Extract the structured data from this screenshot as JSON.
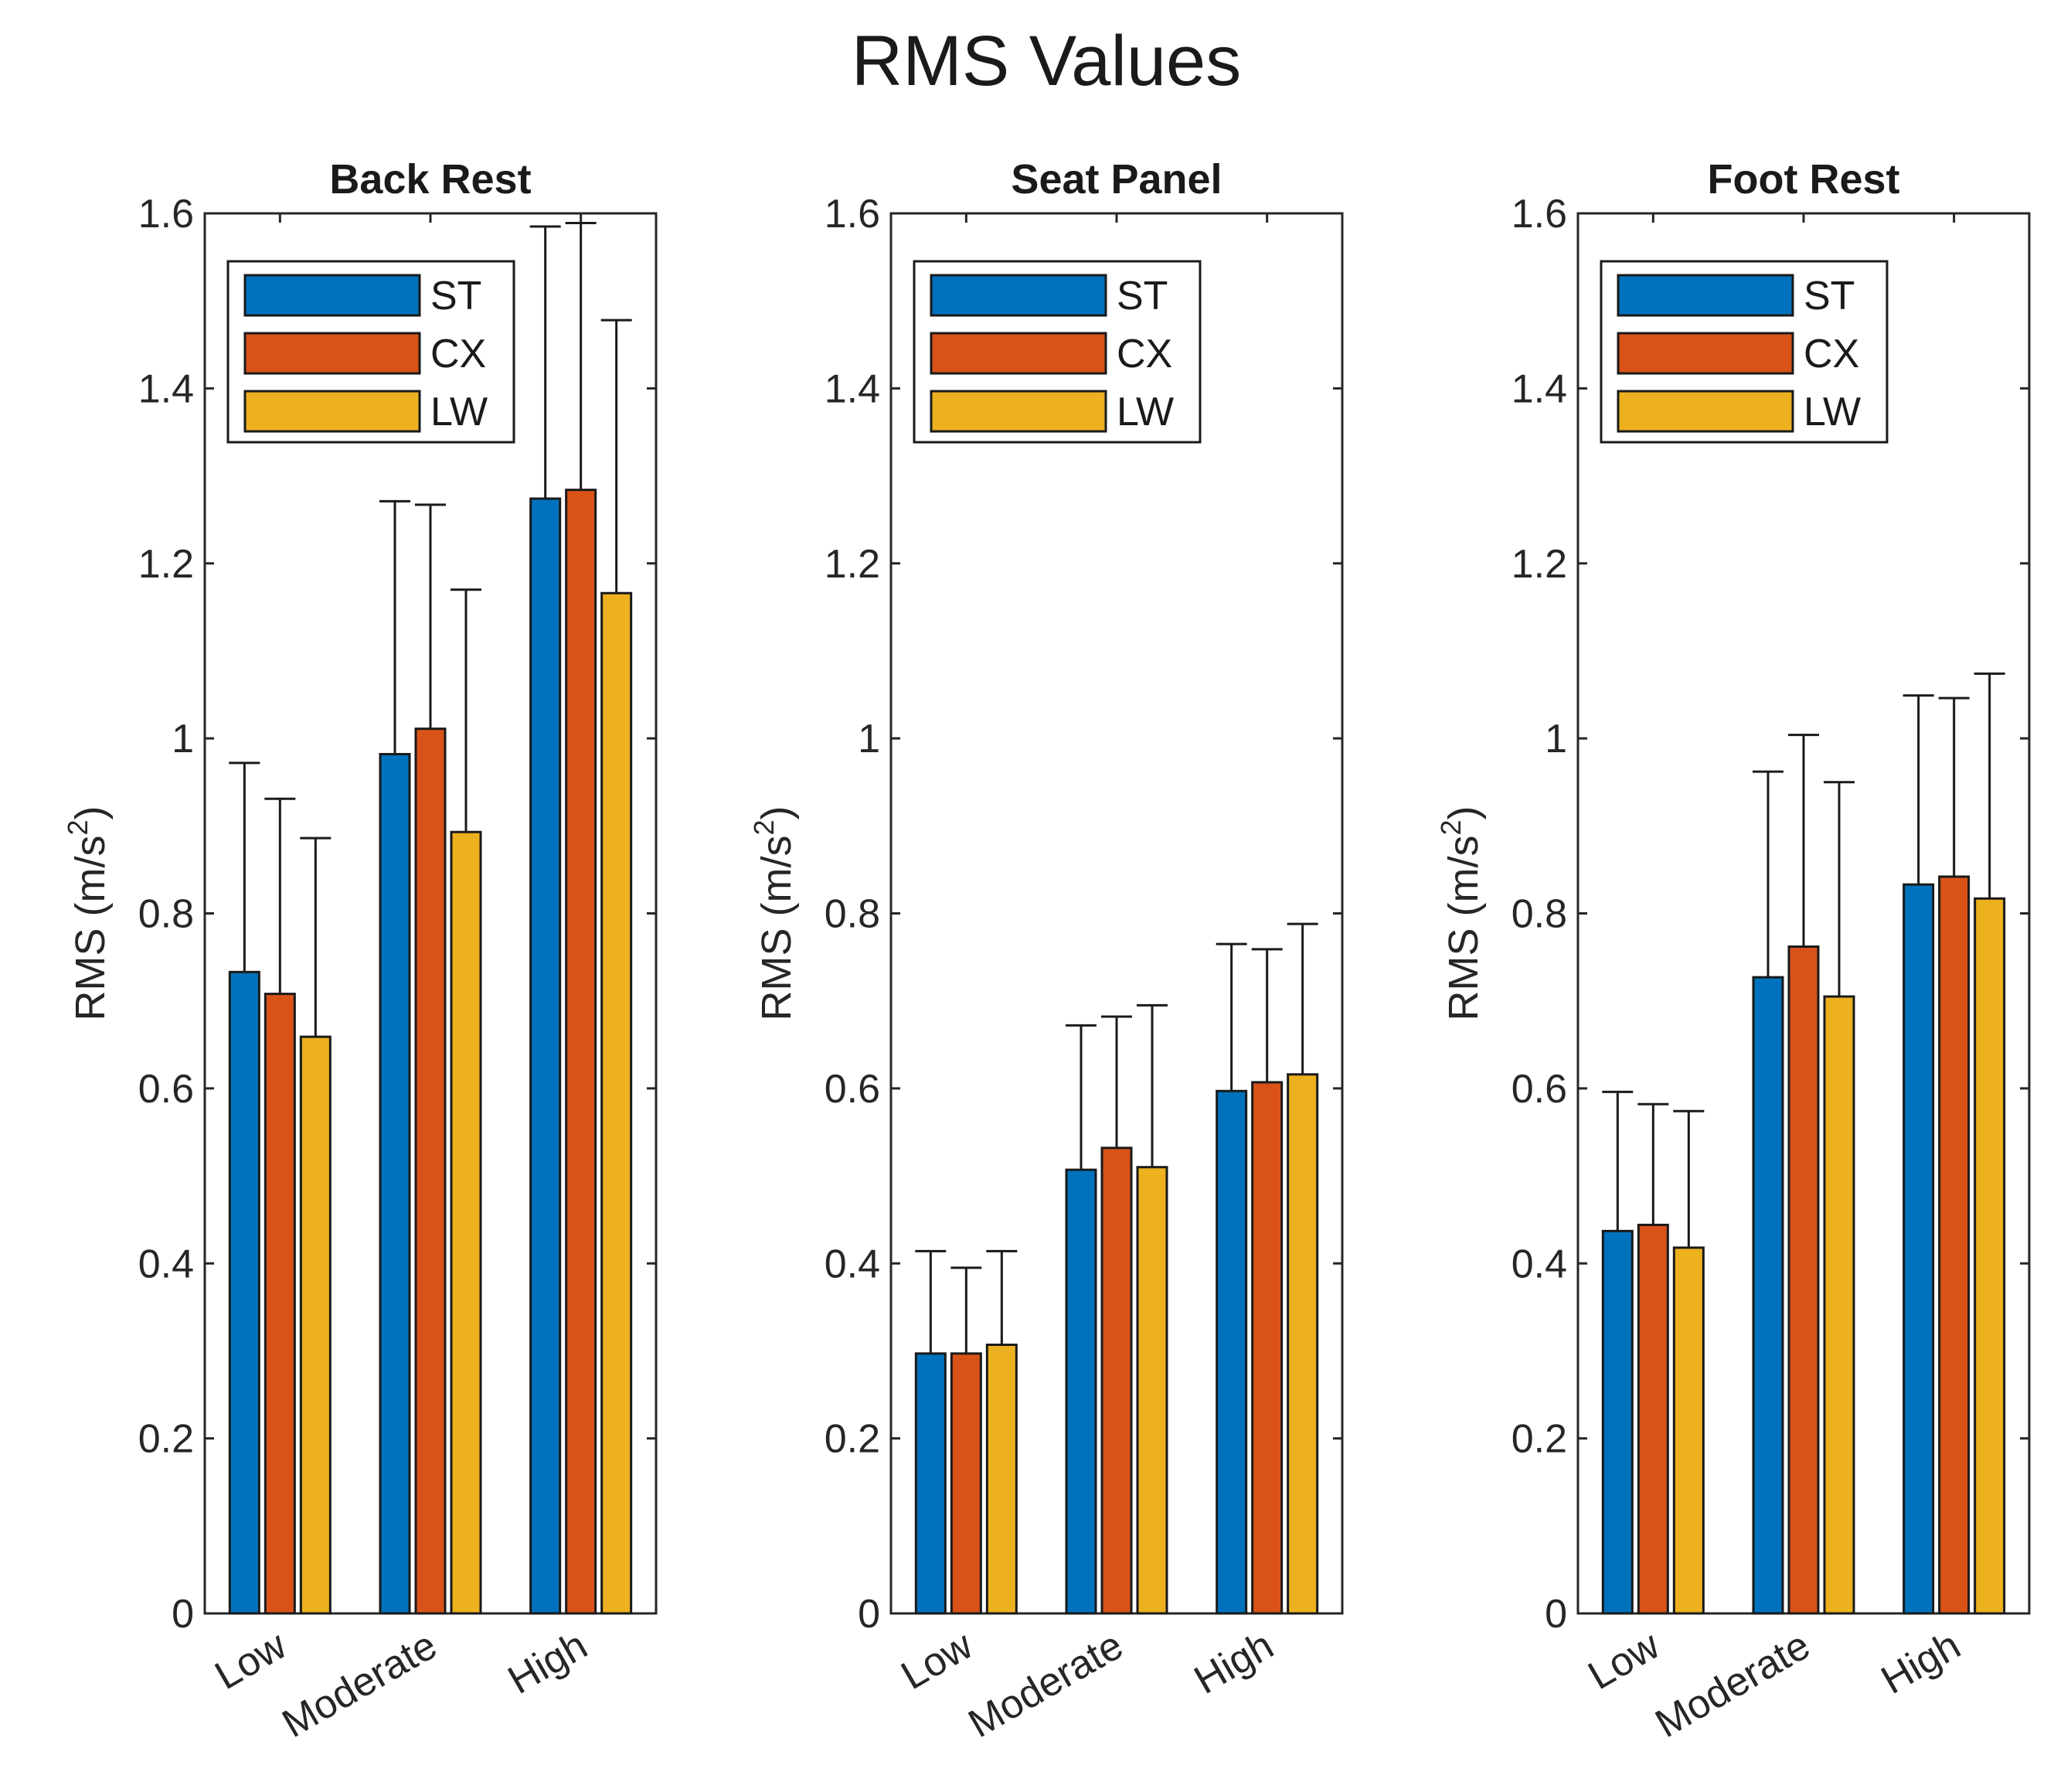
{
  "chart_data": {
    "title": "RMS Values",
    "type": "bar",
    "categories": [
      "Low",
      "Moderate",
      "High"
    ],
    "ylim": [
      0,
      1.6
    ],
    "yticks": [
      0,
      0.2,
      0.4,
      0.6,
      0.8,
      1,
      1.2,
      1.4,
      1.6
    ],
    "ytick_labels": [
      "0",
      "0.2",
      "0.4",
      "0.6",
      "0.8",
      "1",
      "1.2",
      "1.4",
      "1.6"
    ],
    "ylabel": {
      "text": "RMS (m/s",
      "superscript": "2",
      "close": ")"
    },
    "legend_position": "top-left",
    "series_colors": {
      "ST": "#0072BD",
      "CX": "#D95319",
      "LW": "#EDB120"
    },
    "panels": [
      {
        "title": "Back Rest",
        "series": [
          {
            "name": "ST",
            "values": [
              0.733,
              0.982,
              1.274
            ],
            "errors": [
              0.972,
              1.271,
              1.585
            ]
          },
          {
            "name": "CX",
            "values": [
              0.708,
              1.011,
              1.284
            ],
            "errors": [
              0.931,
              1.267,
              1.589
            ]
          },
          {
            "name": "LW",
            "values": [
              0.659,
              0.893,
              1.166
            ],
            "errors": [
              0.886,
              1.17,
              1.478
            ]
          }
        ]
      },
      {
        "title": "Seat Panel",
        "series": [
          {
            "name": "ST",
            "values": [
              0.297,
              0.507,
              0.597
            ],
            "errors": [
              0.414,
              0.672,
              0.765
            ]
          },
          {
            "name": "CX",
            "values": [
              0.297,
              0.532,
              0.607
            ],
            "errors": [
              0.395,
              0.682,
              0.759
            ]
          },
          {
            "name": "LW",
            "values": [
              0.307,
              0.51,
              0.616
            ],
            "errors": [
              0.414,
              0.695,
              0.788
            ]
          }
        ]
      },
      {
        "title": "Foot Rest",
        "series": [
          {
            "name": "ST",
            "values": [
              0.437,
              0.727,
              0.833
            ],
            "errors": [
              0.596,
              0.962,
              1.049
            ]
          },
          {
            "name": "CX",
            "values": [
              0.444,
              0.762,
              0.842
            ],
            "errors": [
              0.582,
              1.004,
              1.046
            ]
          },
          {
            "name": "LW",
            "values": [
              0.418,
              0.705,
              0.817
            ],
            "errors": [
              0.574,
              0.95,
              1.074
            ]
          }
        ]
      }
    ]
  }
}
